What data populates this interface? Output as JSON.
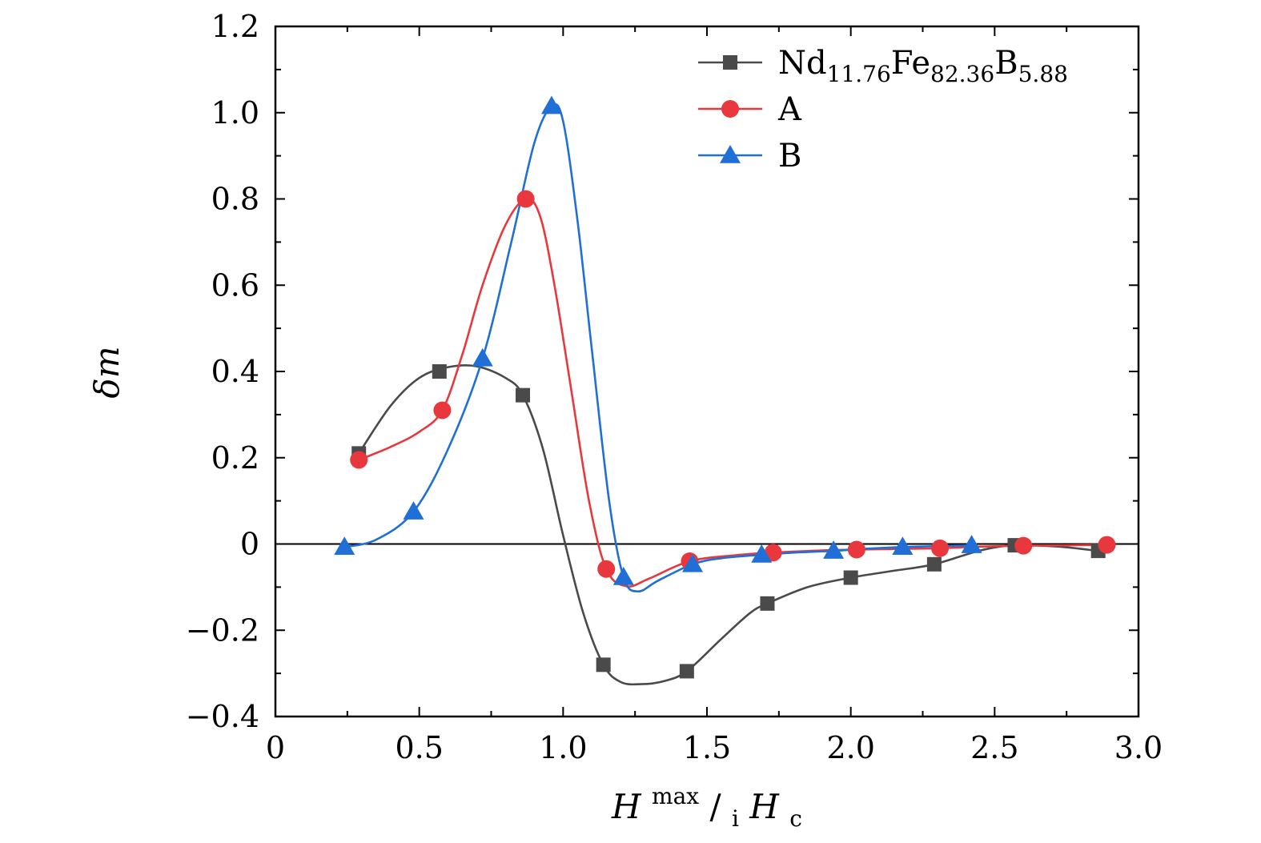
{
  "chart_data": {
    "type": "line",
    "title": "",
    "xlabel": {
      "base": "H",
      "sup": "max",
      "slash": "/",
      "pre_sub": "i",
      "base2": "H",
      "sub2": "c"
    },
    "ylabel": "δm",
    "xlim": [
      0,
      3.0
    ],
    "ylim": [
      -0.4,
      1.2
    ],
    "xticks": [
      0,
      0.5,
      1.0,
      1.5,
      2.0,
      2.5,
      3.0
    ],
    "xtick_labels": [
      "0",
      "0.5",
      "1.0",
      "1.5",
      "2.0",
      "2.5",
      "3.0"
    ],
    "yticks": [
      -0.4,
      -0.2,
      0,
      0.2,
      0.4,
      0.6,
      0.8,
      1.0,
      1.2
    ],
    "ytick_labels": [
      "−0.4",
      "−0.2",
      "0",
      "0.2",
      "0.4",
      "0.6",
      "0.8",
      "1.0",
      "1.2"
    ],
    "zero_line": true,
    "grid": false,
    "legend_position": "top-right",
    "series": [
      {
        "name": "Nd11.76Fe82.36B5.88",
        "legend": {
          "parts": [
            [
              "Nd",
              ""
            ],
            [
              "11.76",
              "sub"
            ],
            [
              "Fe",
              ""
            ],
            [
              "82.36",
              "sub"
            ],
            [
              "B",
              ""
            ],
            [
              "5.88",
              "sub"
            ]
          ]
        },
        "marker": "square",
        "color": "#4a4a4a",
        "x": [
          0.29,
          0.57,
          0.86,
          1.14,
          1.43,
          1.71,
          2.0,
          2.29,
          2.57,
          2.86
        ],
        "y": [
          0.21,
          0.4,
          0.345,
          -0.28,
          -0.295,
          -0.138,
          -0.078,
          -0.047,
          -0.003,
          -0.016
        ],
        "curve": [
          [
            0.29,
            0.21
          ],
          [
            0.4,
            0.32
          ],
          [
            0.5,
            0.385
          ],
          [
            0.6,
            0.41
          ],
          [
            0.7,
            0.412
          ],
          [
            0.8,
            0.385
          ],
          [
            0.86,
            0.345
          ],
          [
            0.93,
            0.22
          ],
          [
            1.0,
            0.02
          ],
          [
            1.07,
            -0.16
          ],
          [
            1.14,
            -0.28
          ],
          [
            1.2,
            -0.32
          ],
          [
            1.27,
            -0.325
          ],
          [
            1.35,
            -0.318
          ],
          [
            1.43,
            -0.295
          ],
          [
            1.55,
            -0.22
          ],
          [
            1.65,
            -0.16
          ],
          [
            1.71,
            -0.138
          ],
          [
            1.85,
            -0.1
          ],
          [
            2.0,
            -0.078
          ],
          [
            2.15,
            -0.062
          ],
          [
            2.29,
            -0.047
          ],
          [
            2.45,
            -0.015
          ],
          [
            2.57,
            -0.003
          ],
          [
            2.72,
            -0.006
          ],
          [
            2.86,
            -0.016
          ]
        ]
      },
      {
        "name": "A",
        "legend": {
          "parts": [
            [
              "A",
              ""
            ]
          ]
        },
        "marker": "circle",
        "color": "#e8383d",
        "x": [
          0.29,
          0.58,
          0.87,
          1.15,
          1.44,
          1.73,
          2.02,
          2.31,
          2.6,
          2.89
        ],
        "y": [
          0.195,
          0.31,
          0.8,
          -0.058,
          -0.04,
          -0.02,
          -0.013,
          -0.01,
          -0.004,
          -0.002
        ],
        "curve": [
          [
            0.29,
            0.195
          ],
          [
            0.4,
            0.225
          ],
          [
            0.5,
            0.26
          ],
          [
            0.58,
            0.31
          ],
          [
            0.65,
            0.44
          ],
          [
            0.72,
            0.6
          ],
          [
            0.8,
            0.74
          ],
          [
            0.87,
            0.8
          ],
          [
            0.92,
            0.76
          ],
          [
            0.97,
            0.6
          ],
          [
            1.03,
            0.35
          ],
          [
            1.09,
            0.1
          ],
          [
            1.15,
            -0.058
          ],
          [
            1.22,
            -0.098
          ],
          [
            1.3,
            -0.08
          ],
          [
            1.44,
            -0.04
          ],
          [
            1.6,
            -0.026
          ],
          [
            1.73,
            -0.02
          ],
          [
            1.9,
            -0.015
          ],
          [
            2.02,
            -0.013
          ],
          [
            2.2,
            -0.011
          ],
          [
            2.31,
            -0.01
          ],
          [
            2.45,
            -0.006
          ],
          [
            2.6,
            -0.004
          ],
          [
            2.75,
            -0.003
          ],
          [
            2.89,
            -0.002
          ]
        ]
      },
      {
        "name": "B",
        "legend": {
          "parts": [
            [
              "B",
              ""
            ]
          ]
        },
        "marker": "triangle",
        "color": "#1f6fd6",
        "x": [
          0.24,
          0.48,
          0.72,
          0.96,
          1.21,
          1.45,
          1.69,
          1.94,
          2.18,
          2.42
        ],
        "y": [
          -0.007,
          0.075,
          0.43,
          1.015,
          -0.077,
          -0.047,
          -0.025,
          -0.016,
          -0.007,
          -0.003
        ],
        "curve": [
          [
            0.24,
            -0.007
          ],
          [
            0.35,
            0.01
          ],
          [
            0.48,
            0.075
          ],
          [
            0.6,
            0.22
          ],
          [
            0.72,
            0.43
          ],
          [
            0.82,
            0.7
          ],
          [
            0.9,
            0.93
          ],
          [
            0.96,
            1.015
          ],
          [
            1.0,
            0.98
          ],
          [
            1.05,
            0.75
          ],
          [
            1.1,
            0.45
          ],
          [
            1.16,
            0.1
          ],
          [
            1.21,
            -0.077
          ],
          [
            1.26,
            -0.11
          ],
          [
            1.33,
            -0.085
          ],
          [
            1.45,
            -0.047
          ],
          [
            1.55,
            -0.033
          ],
          [
            1.69,
            -0.025
          ],
          [
            1.8,
            -0.02
          ],
          [
            1.94,
            -0.016
          ],
          [
            2.05,
            -0.011
          ],
          [
            2.18,
            -0.007
          ],
          [
            2.3,
            -0.005
          ],
          [
            2.42,
            -0.003
          ]
        ]
      }
    ]
  }
}
